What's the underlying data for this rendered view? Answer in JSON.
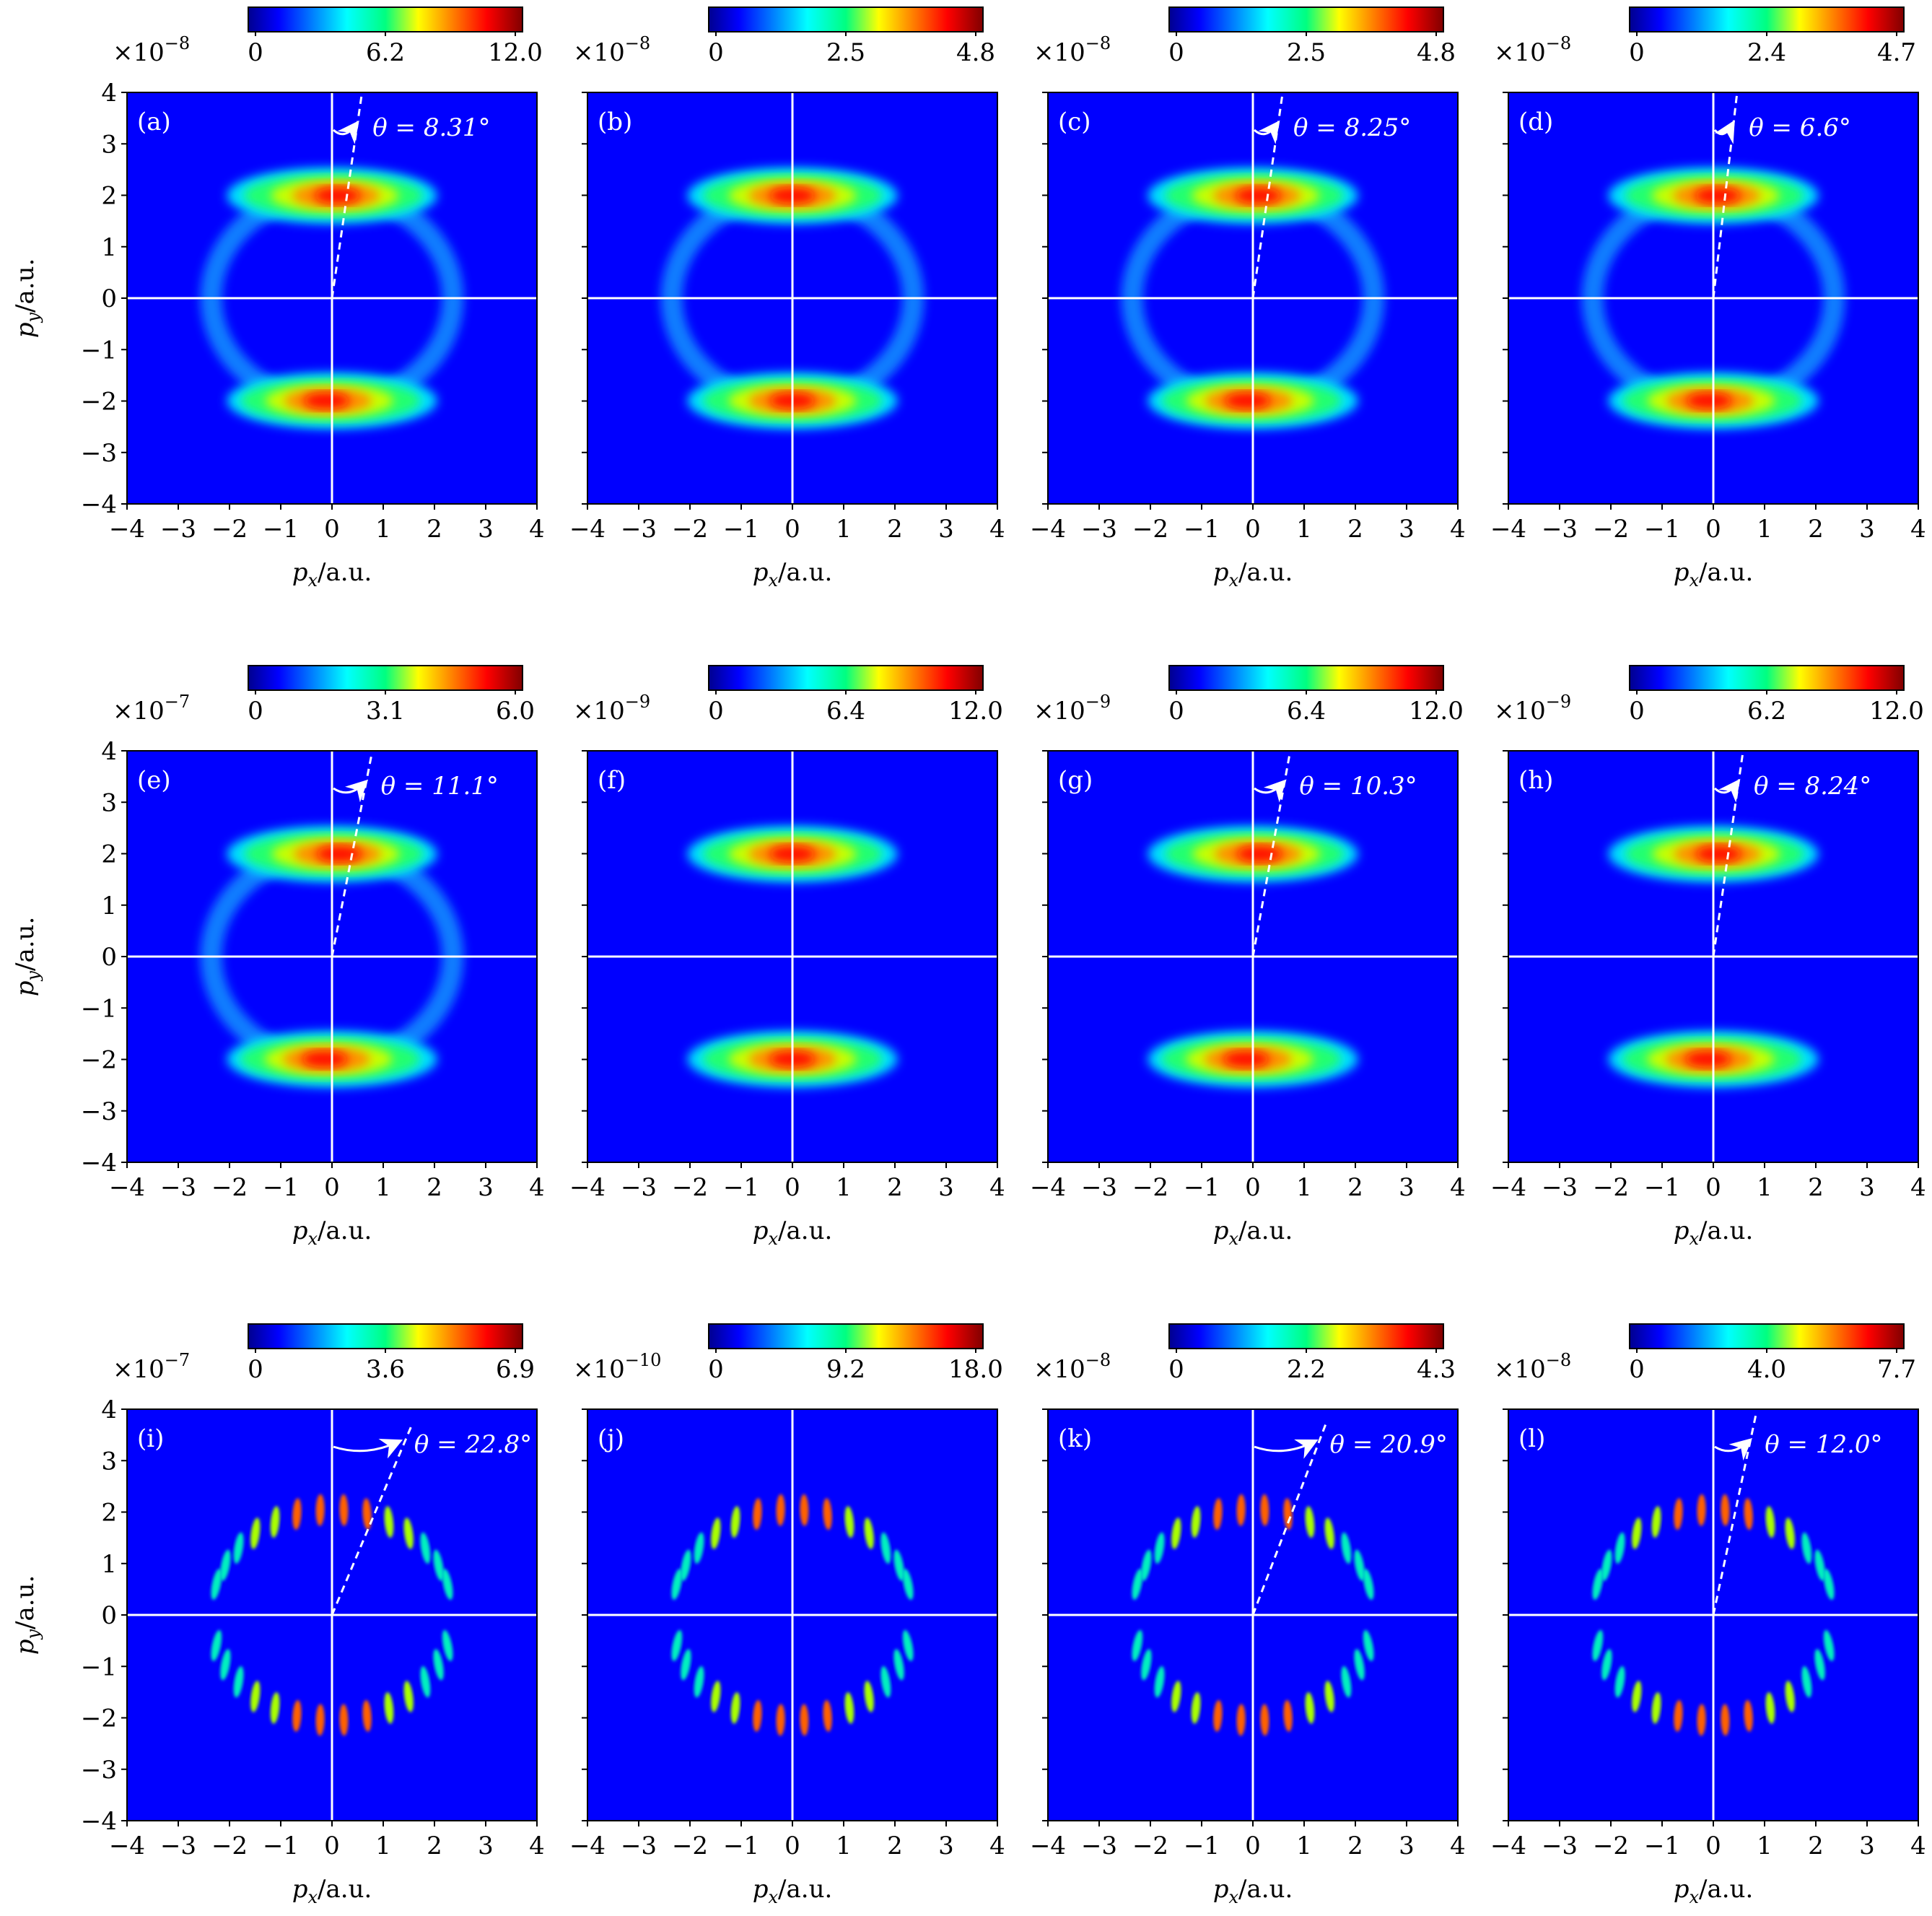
{
  "chart_data": {
    "type": "heatmap",
    "colormap": "jet",
    "background_color": "#0000ff",
    "axis_line_color": "#ffffff",
    "xlim": [
      -4,
      4
    ],
    "ylim": [
      -4,
      4
    ],
    "xticks": [
      "−4",
      "−3",
      "−2",
      "−1",
      "0",
      "1",
      "2",
      "3",
      "4"
    ],
    "yticks": [
      "4",
      "3",
      "2",
      "1",
      "0",
      "−1",
      "−2",
      "−3",
      "−4"
    ],
    "xlabel": "p_x/a.u.",
    "ylabel": "p_y/a.u.",
    "panels": [
      {
        "label": "(a)",
        "scale": "×10",
        "exponent": "−8",
        "cbar_ticks": [
          "0",
          "6.2",
          "12.0"
        ],
        "pattern": "ring",
        "theta_deg": 8.31,
        "theta_text": "θ = 8.31°"
      },
      {
        "label": "(b)",
        "scale": "×10",
        "exponent": "−8",
        "cbar_ticks": [
          "0",
          "2.5",
          "4.8"
        ],
        "pattern": "ring",
        "theta_deg": 0,
        "theta_text": ""
      },
      {
        "label": "(c)",
        "scale": "×10",
        "exponent": "−8",
        "cbar_ticks": [
          "0",
          "2.5",
          "4.8"
        ],
        "pattern": "ring",
        "theta_deg": 8.25,
        "theta_text": "θ = 8.25°"
      },
      {
        "label": "(d)",
        "scale": "×10",
        "exponent": "−8",
        "cbar_ticks": [
          "0",
          "2.4",
          "4.7"
        ],
        "pattern": "ring",
        "theta_deg": 6.6,
        "theta_text": "θ = 6.6°"
      },
      {
        "label": "(e)",
        "scale": "×10",
        "exponent": "−7",
        "cbar_ticks": [
          "0",
          "3.1",
          "6.0"
        ],
        "pattern": "ring",
        "theta_deg": 11.1,
        "theta_text": "θ = 11.1°"
      },
      {
        "label": "(f)",
        "scale": "×10",
        "exponent": "−9",
        "cbar_ticks": [
          "0",
          "6.4",
          "12.0"
        ],
        "pattern": "arcs",
        "theta_deg": 0,
        "theta_text": ""
      },
      {
        "label": "(g)",
        "scale": "×10",
        "exponent": "−9",
        "cbar_ticks": [
          "0",
          "6.4",
          "12.0"
        ],
        "pattern": "arcs",
        "theta_deg": 10.3,
        "theta_text": "θ = 10.3°"
      },
      {
        "label": "(h)",
        "scale": "×10",
        "exponent": "−9",
        "cbar_ticks": [
          "0",
          "6.2",
          "12.0"
        ],
        "pattern": "arcs",
        "theta_deg": 8.24,
        "theta_text": "θ = 8.24°"
      },
      {
        "label": "(i)",
        "scale": "×10",
        "exponent": "−7",
        "cbar_ticks": [
          "0",
          "3.6",
          "6.9"
        ],
        "pattern": "fringes",
        "theta_deg": 22.8,
        "theta_text": "θ = 22.8°"
      },
      {
        "label": "(j)",
        "scale": "×10",
        "exponent": "−10",
        "cbar_ticks": [
          "0",
          "9.2",
          "18.0"
        ],
        "pattern": "fringes",
        "theta_deg": 0,
        "theta_text": ""
      },
      {
        "label": "(k)",
        "scale": "×10",
        "exponent": "−8",
        "cbar_ticks": [
          "0",
          "2.2",
          "4.3"
        ],
        "pattern": "fringes",
        "theta_deg": 20.9,
        "theta_text": "θ = 20.9°"
      },
      {
        "label": "(l)",
        "scale": "×10",
        "exponent": "−8",
        "cbar_ticks": [
          "0",
          "4.0",
          "7.7"
        ],
        "pattern": "fringes",
        "theta_deg": 12.0,
        "theta_text": "θ = 12.0°"
      }
    ]
  }
}
